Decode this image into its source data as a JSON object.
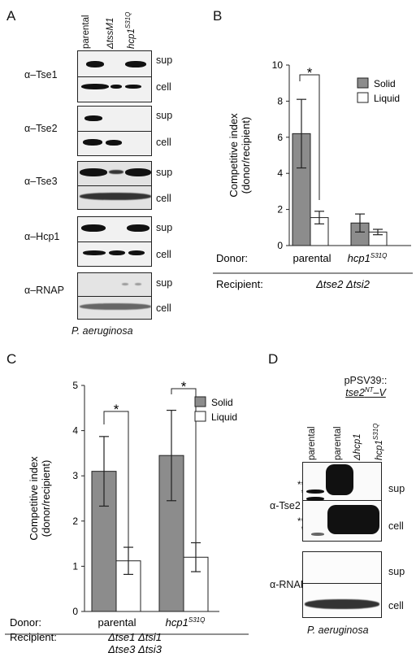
{
  "panel_A": {
    "letter": "A",
    "lanes": [
      "parental",
      "ΔtssM1",
      "hcp1"
    ],
    "lane_sup": "S31Q",
    "fractions": [
      "sup",
      "cell"
    ],
    "antibodies": [
      "α–Tse1",
      "α–Tse2",
      "α–Tse3",
      "α–Hcp1",
      "α–RNAP"
    ],
    "organism": "P. aeruginosa"
  },
  "panel_D": {
    "letter": "D",
    "plasmid_line1": "pPSV39::",
    "plasmid_line2": "tse2",
    "plasmid_sup": "NT",
    "plasmid_suffix": "–V",
    "lanes": [
      "parental",
      "parental",
      "Δhcp1",
      "hcp1"
    ],
    "lane_sup": "S31Q",
    "fractions": [
      "sup",
      "cell"
    ],
    "antibodies": [
      "α-Tse2",
      "α-RNAP"
    ],
    "asterisks": [
      "**",
      "*"
    ],
    "organism": "P. aeruginosa"
  },
  "chart_data": [
    {
      "panel": "B",
      "type": "bar",
      "ylabel": "Competitive index\n(donor/recipient)",
      "ylim": [
        0,
        10
      ],
      "yticks": [
        0,
        2,
        4,
        6,
        8,
        10
      ],
      "row_donor": "Donor:",
      "row_recipient": "Recipient:",
      "categories": [
        "parental",
        "hcp1"
      ],
      "category_sup": [
        "",
        "S31Q"
      ],
      "recipient": "Δtse2 Δtsi2",
      "series": [
        {
          "name": "Solid",
          "color": "#8c8c8c",
          "values": [
            6.2,
            1.25
          ],
          "err": [
            1.9,
            0.5
          ]
        },
        {
          "name": "Liquid",
          "color": "#ffffff",
          "values": [
            1.55,
            0.75
          ],
          "err": [
            0.35,
            0.15
          ]
        }
      ],
      "significance": [
        "*"
      ],
      "legend": "top-right"
    },
    {
      "panel": "C",
      "type": "bar",
      "ylabel": "Competitive index\n(donor/recipient)",
      "ylim": [
        0,
        5
      ],
      "yticks": [
        0,
        1,
        2,
        3,
        4,
        5
      ],
      "row_donor": "Donor:",
      "row_recipient": "Recipient:",
      "categories": [
        "parental",
        "hcp1"
      ],
      "category_sup": [
        "",
        "S31Q"
      ],
      "recipient_line1": "Δtse1 Δtsi1",
      "recipient_line2": "Δtse3 Δtsi3",
      "series": [
        {
          "name": "Solid",
          "color": "#8c8c8c",
          "values": [
            3.1,
            3.45
          ],
          "err": [
            0.77,
            1.0
          ]
        },
        {
          "name": "Liquid",
          "color": "#ffffff",
          "values": [
            1.12,
            1.2
          ],
          "err": [
            0.3,
            0.32
          ]
        }
      ],
      "significance": [
        "*",
        "*"
      ],
      "legend": "top-right"
    }
  ]
}
